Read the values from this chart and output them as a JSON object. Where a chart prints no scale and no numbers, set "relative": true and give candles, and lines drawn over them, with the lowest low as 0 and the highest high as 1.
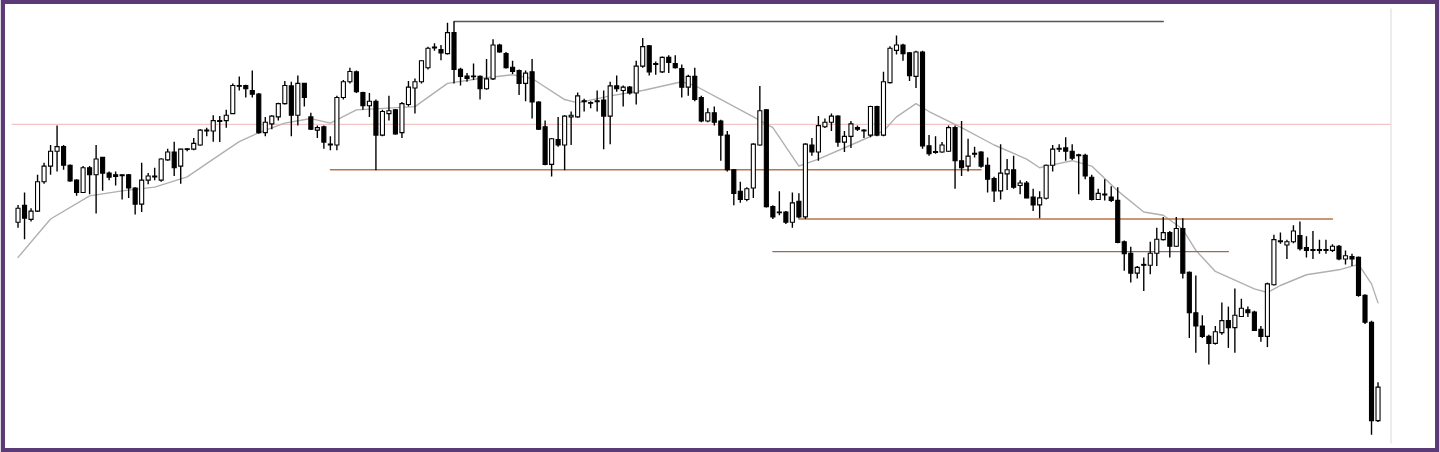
{
  "chart_data": {
    "type": "candlestick",
    "relative": true,
    "categories": [
      null,
      null,
      null,
      null,
      null,
      null,
      null,
      null,
      null,
      null,
      null,
      null,
      null,
      null,
      null,
      null,
      null,
      null,
      null,
      null,
      null,
      null,
      null,
      null,
      null,
      null,
      null,
      null,
      null,
      null,
      null,
      null,
      null,
      null,
      null,
      null,
      null,
      null,
      null,
      null,
      null,
      null,
      null,
      null,
      null,
      null,
      null,
      null,
      null,
      null,
      null,
      null,
      null,
      null,
      null,
      null,
      null,
      null,
      null,
      null,
      null,
      null,
      null,
      null,
      null,
      null,
      null,
      null,
      null,
      null,
      null,
      null,
      null,
      null,
      null,
      null,
      null,
      null,
      null,
      null,
      null,
      null,
      null,
      null,
      null,
      null,
      null,
      null,
      null,
      null,
      null,
      null,
      null,
      null,
      null,
      null,
      null,
      null,
      null,
      null,
      null,
      null,
      null,
      null,
      null,
      null,
      null,
      null,
      null,
      null,
      null,
      null,
      null,
      null,
      null,
      null,
      null,
      null,
      null,
      null,
      null,
      null,
      null,
      null,
      null,
      null,
      null,
      null,
      null,
      null,
      null,
      null,
      null,
      null,
      null,
      null,
      null,
      null,
      null,
      null,
      null,
      null,
      null,
      null,
      null,
      null,
      null,
      null,
      null,
      null,
      null,
      null,
      null,
      null,
      null,
      null,
      null,
      null,
      null,
      null,
      null,
      null,
      null,
      null,
      null,
      null,
      null,
      null,
      null,
      null,
      null,
      null,
      null,
      null,
      null,
      null,
      null,
      null,
      null,
      null,
      null,
      null,
      null,
      null,
      null,
      null,
      null,
      null,
      null,
      null,
      null,
      null,
      null,
      null,
      null,
      null,
      null,
      null,
      null,
      null,
      null,
      null,
      null,
      null,
      null,
      null,
      null,
      null,
      null,
      null
    ],
    "ohlc": [
      [
        0.514,
        0.556,
        0.501,
        0.548
      ],
      [
        0.555,
        0.586,
        0.473,
        0.524
      ],
      [
        0.521,
        0.548,
        0.516,
        0.541
      ],
      [
        0.541,
        0.629,
        0.539,
        0.612
      ],
      [
        0.612,
        0.658,
        0.607,
        0.65
      ],
      [
        0.65,
        0.701,
        0.629,
        0.686
      ],
      [
        0.686,
        0.748,
        0.637,
        0.697
      ],
      [
        0.697,
        0.701,
        0.641,
        0.652
      ],
      [
        0.652,
        0.654,
        0.612,
        0.614
      ],
      [
        0.616,
        0.618,
        0.578,
        0.586
      ],
      [
        0.586,
        0.65,
        0.586,
        0.646
      ],
      [
        0.646,
        0.65,
        0.582,
        0.629
      ],
      [
        0.629,
        0.701,
        0.535,
        0.667
      ],
      [
        0.671,
        0.671,
        0.59,
        0.633
      ],
      [
        0.633,
        0.637,
        0.616,
        0.623
      ],
      [
        0.629,
        0.637,
        0.603,
        0.625
      ],
      [
        0.629,
        0.629,
        0.569,
        0.627
      ],
      [
        0.629,
        0.631,
        0.573,
        0.597
      ],
      [
        0.597,
        0.599,
        0.533,
        0.558
      ],
      [
        0.558,
        0.658,
        0.539,
        0.616
      ],
      [
        0.616,
        0.633,
        0.606,
        0.626
      ],
      [
        0.624,
        0.646,
        0.616,
        0.625
      ],
      [
        0.616,
        0.669,
        0.612,
        0.667
      ],
      [
        0.665,
        0.692,
        0.663,
        0.684
      ],
      [
        0.684,
        0.709,
        0.626,
        0.646
      ],
      [
        0.65,
        0.692,
        0.607,
        0.691
      ],
      [
        0.69,
        0.694,
        0.686,
        0.691
      ],
      [
        0.691,
        0.718,
        0.688,
        0.705
      ],
      [
        0.701,
        0.739,
        0.699,
        0.737
      ],
      [
        0.735,
        0.743,
        0.722,
        0.737
      ],
      [
        0.735,
        0.773,
        0.709,
        0.76
      ],
      [
        0.76,
        0.771,
        0.708,
        0.758
      ],
      [
        0.76,
        0.786,
        0.743,
        0.773
      ],
      [
        0.777,
        0.85,
        0.776,
        0.845
      ],
      [
        0.845,
        0.867,
        0.833,
        0.843
      ],
      [
        0.845,
        0.847,
        0.816,
        0.837
      ],
      [
        0.833,
        0.881,
        0.816,
        0.824
      ],
      [
        0.824,
        0.827,
        0.728,
        0.731
      ],
      [
        0.731,
        0.769,
        0.722,
        0.756
      ],
      [
        0.752,
        0.773,
        0.739,
        0.771
      ],
      [
        0.769,
        0.803,
        0.76,
        0.801
      ],
      [
        0.801,
        0.856,
        0.799,
        0.845
      ],
      [
        0.844,
        0.854,
        0.722,
        0.773
      ],
      [
        0.773,
        0.869,
        0.748,
        0.85
      ],
      [
        0.85,
        0.851,
        0.794,
        0.816
      ],
      [
        0.769,
        0.779,
        0.737,
        0.739
      ],
      [
        0.737,
        0.748,
        0.718,
        0.743
      ],
      [
        0.745,
        0.748,
        0.692,
        0.708
      ],
      [
        0.703,
        0.722,
        0.688,
        0.701
      ],
      [
        0.701,
        0.82,
        0.688,
        0.816
      ],
      [
        0.816,
        0.858,
        0.811,
        0.854
      ],
      [
        0.854,
        0.888,
        0.85,
        0.879
      ],
      [
        0.878,
        0.881,
        0.827,
        0.83
      ],
      [
        0.828,
        0.83,
        0.786,
        0.796
      ],
      [
        0.796,
        0.827,
        0.769,
        0.807
      ],
      [
        0.807,
        0.811,
        0.64,
        0.725
      ],
      [
        0.725,
        0.786,
        0.722,
        0.782
      ],
      [
        0.777,
        0.82,
        0.76,
        0.784
      ],
      [
        0.786,
        0.788,
        0.726,
        0.728
      ],
      [
        0.731,
        0.805,
        0.718,
        0.801
      ],
      [
        0.799,
        0.856,
        0.794,
        0.841
      ],
      [
        0.839,
        0.862,
        0.777,
        0.854
      ],
      [
        0.854,
        0.906,
        0.85,
        0.905
      ],
      [
        0.888,
        0.939,
        0.884,
        0.935
      ],
      [
        0.937,
        0.947,
        0.929,
        0.936
      ],
      [
        0.932,
        0.943,
        0.906,
        0.924
      ],
      [
        0.922,
        0.997,
        0.92,
        0.973
      ],
      [
        0.973,
        1.0,
        0.85,
        0.884
      ],
      [
        0.884,
        0.888,
        0.845,
        0.867
      ],
      [
        0.868,
        0.875,
        0.854,
        0.862
      ],
      [
        0.867,
        0.898,
        0.858,
        0.866
      ],
      [
        0.867,
        0.869,
        0.811,
        0.837
      ],
      [
        0.837,
        0.909,
        0.835,
        0.861
      ],
      [
        0.861,
        0.957,
        0.858,
        0.943
      ],
      [
        0.943,
        0.946,
        0.924,
        0.926
      ],
      [
        0.922,
        0.926,
        0.886,
        0.888
      ],
      [
        0.889,
        0.905,
        0.873,
        0.879
      ],
      [
        0.881,
        0.884,
        0.822,
        0.85
      ],
      [
        0.85,
        0.881,
        0.807,
        0.875
      ],
      [
        0.878,
        0.909,
        0.765,
        0.805
      ],
      [
        0.805,
        0.807,
        0.737,
        0.739
      ],
      [
        0.745,
        0.76,
        0.652,
        0.654
      ],
      [
        0.654,
        0.718,
        0.625,
        0.716
      ],
      [
        0.714,
        0.769,
        0.697,
        0.701
      ],
      [
        0.701,
        0.773,
        0.64,
        0.771
      ],
      [
        0.769,
        0.782,
        0.701,
        0.773
      ],
      [
        0.769,
        0.828,
        0.767,
        0.82
      ],
      [
        0.807,
        0.813,
        0.782,
        0.806
      ],
      [
        0.803,
        0.807,
        0.79,
        0.802
      ],
      [
        0.807,
        0.833,
        0.782,
        0.806
      ],
      [
        0.81,
        0.833,
        0.691,
        0.771
      ],
      [
        0.771,
        0.854,
        0.703,
        0.844
      ],
      [
        0.844,
        0.869,
        0.83,
        0.837
      ],
      [
        0.833,
        0.845,
        0.794,
        0.841
      ],
      [
        0.841,
        0.844,
        0.823,
        0.827
      ],
      [
        0.827,
        0.905,
        0.799,
        0.892
      ],
      [
        0.892,
        0.96,
        0.888,
        0.939
      ],
      [
        0.941,
        0.943,
        0.869,
        0.878
      ],
      [
        0.897,
        0.903,
        0.871,
        0.896
      ],
      [
        0.878,
        0.915,
        0.875,
        0.913
      ],
      [
        0.913,
        0.918,
        0.875,
        0.901
      ],
      [
        0.898,
        0.918,
        0.886,
        0.888
      ],
      [
        0.886,
        0.896,
        0.816,
        0.841
      ],
      [
        0.841,
        0.871,
        0.82,
        0.867
      ],
      [
        0.867,
        0.888,
        0.807,
        0.811
      ],
      [
        0.816,
        0.82,
        0.756,
        0.759
      ],
      [
        0.759,
        0.79,
        0.756,
        0.779
      ],
      [
        0.779,
        0.794,
        0.748,
        0.756
      ],
      [
        0.759,
        0.762,
        0.663,
        0.725
      ],
      [
        0.725,
        0.735,
        0.637,
        0.641
      ],
      [
        0.641,
        0.643,
        0.555,
        0.584
      ],
      [
        0.589,
        0.612,
        0.561,
        0.569
      ],
      [
        0.569,
        0.599,
        0.565,
        0.595
      ],
      [
        0.597,
        0.705,
        0.573,
        0.703
      ],
      [
        0.701,
        0.844,
        0.699,
        0.784
      ],
      [
        0.786,
        0.788,
        0.55,
        0.552
      ],
      [
        0.552,
        0.555,
        0.522,
        0.527
      ],
      [
        0.538,
        0.589,
        0.531,
        0.537
      ],
      [
        0.539,
        0.541,
        0.51,
        0.514
      ],
      [
        0.514,
        0.586,
        0.501,
        0.561
      ],
      [
        0.565,
        0.584,
        0.524,
        0.527
      ],
      [
        0.527,
        0.705,
        0.522,
        0.703
      ],
      [
        0.701,
        0.718,
        0.675,
        0.684
      ],
      [
        0.684,
        0.771,
        0.663,
        0.748
      ],
      [
        0.745,
        0.765,
        0.742,
        0.756
      ],
      [
        0.756,
        0.777,
        0.735,
        0.771
      ],
      [
        0.771,
        0.773,
        0.697,
        0.708
      ],
      [
        0.708,
        0.735,
        0.684,
        0.722
      ],
      [
        0.722,
        0.759,
        0.694,
        0.752
      ],
      [
        0.743,
        0.748,
        0.735,
        0.739
      ],
      [
        0.736,
        0.739,
        0.718,
        0.735
      ],
      [
        0.725,
        0.796,
        0.72,
        0.794
      ],
      [
        0.794,
        0.796,
        0.722,
        0.725
      ],
      [
        0.725,
        0.878,
        0.722,
        0.854
      ],
      [
        0.852,
        0.94,
        0.85,
        0.935
      ],
      [
        0.93,
        0.966,
        0.92,
        0.943
      ],
      [
        0.943,
        0.946,
        0.905,
        0.922
      ],
      [
        0.924,
        0.926,
        0.856,
        0.869
      ],
      [
        0.867,
        0.929,
        0.839,
        0.926
      ],
      [
        0.926,
        0.929,
        0.692,
        0.699
      ],
      [
        0.699,
        0.725,
        0.675,
        0.68
      ],
      [
        0.684,
        0.722,
        0.68,
        0.683
      ],
      [
        0.684,
        0.708,
        0.682,
        0.701
      ],
      [
        0.686,
        0.748,
        0.684,
        0.743
      ],
      [
        0.743,
        0.748,
        0.595,
        0.663
      ],
      [
        0.663,
        0.759,
        0.626,
        0.646
      ],
      [
        0.65,
        0.716,
        0.637,
        0.674
      ],
      [
        0.68,
        0.697,
        0.671,
        0.679
      ],
      [
        0.684,
        0.686,
        0.646,
        0.65
      ],
      [
        0.652,
        0.671,
        0.586,
        0.618
      ],
      [
        0.62,
        0.624,
        0.563,
        0.59
      ],
      [
        0.59,
        0.703,
        0.569,
        0.633
      ],
      [
        0.631,
        0.667,
        0.592,
        0.641
      ],
      [
        0.641,
        0.675,
        0.595,
        0.599
      ],
      [
        0.603,
        0.616,
        0.582,
        0.609
      ],
      [
        0.609,
        0.614,
        0.572,
        0.573
      ],
      [
        0.575,
        0.595,
        0.541,
        0.556
      ],
      [
        0.556,
        0.589,
        0.524,
        0.573
      ],
      [
        0.572,
        0.654,
        0.569,
        0.652
      ],
      [
        0.652,
        0.701,
        0.637,
        0.691
      ],
      [
        0.691,
        0.703,
        0.684,
        0.692
      ],
      [
        0.694,
        0.72,
        0.663,
        0.686
      ],
      [
        0.686,
        0.703,
        0.665,
        0.669
      ],
      [
        0.676,
        0.68,
        0.582,
        0.675
      ],
      [
        0.676,
        0.68,
        0.618,
        0.626
      ],
      [
        0.623,
        0.629,
        0.567,
        0.569
      ],
      [
        0.569,
        0.595,
        0.569,
        0.584
      ],
      [
        0.581,
        0.618,
        0.567,
        0.58
      ],
      [
        0.575,
        0.601,
        0.563,
        0.567
      ],
      [
        0.567,
        0.599,
        0.463,
        0.465
      ],
      [
        0.467,
        0.47,
        0.397,
        0.438
      ],
      [
        0.439,
        0.455,
        0.368,
        0.391
      ],
      [
        0.391,
        0.408,
        0.378,
        0.405
      ],
      [
        0.411,
        0.429,
        0.348,
        0.41
      ],
      [
        0.41,
        0.467,
        0.388,
        0.439
      ],
      [
        0.439,
        0.501,
        0.408,
        0.473
      ],
      [
        0.472,
        0.527,
        0.47,
        0.489
      ],
      [
        0.489,
        0.493,
        0.429,
        0.456
      ],
      [
        0.456,
        0.527,
        0.455,
        0.499
      ],
      [
        0.499,
        0.524,
        0.378,
        0.391
      ],
      [
        0.393,
        0.395,
        0.234,
        0.295
      ],
      [
        0.295,
        0.385,
        0.198,
        0.263
      ],
      [
        0.263,
        0.289,
        0.234,
        0.238
      ],
      [
        0.238,
        0.242,
        0.17,
        0.221
      ],
      [
        0.221,
        0.263,
        0.218,
        0.249
      ],
      [
        0.247,
        0.32,
        0.242,
        0.276
      ],
      [
        0.276,
        0.31,
        0.21,
        0.259
      ],
      [
        0.259,
        0.354,
        0.198,
        0.289
      ],
      [
        0.286,
        0.329,
        0.285,
        0.306
      ],
      [
        0.302,
        0.31,
        0.285,
        0.295
      ],
      [
        0.297,
        0.3,
        0.251,
        0.252
      ],
      [
        0.255,
        0.263,
        0.225,
        0.238
      ],
      [
        0.238,
        0.368,
        0.212,
        0.365
      ],
      [
        0.363,
        0.484,
        0.361,
        0.472
      ],
      [
        0.468,
        0.489,
        0.462,
        0.467
      ],
      [
        0.459,
        0.472,
        0.425,
        0.467
      ],
      [
        0.467,
        0.507,
        0.463,
        0.493
      ],
      [
        0.482,
        0.516,
        0.446,
        0.45
      ],
      [
        0.453,
        0.48,
        0.429,
        0.446
      ],
      [
        0.447,
        0.493,
        0.425,
        0.446
      ],
      [
        0.447,
        0.472,
        0.438,
        0.446
      ],
      [
        0.447,
        0.472,
        0.438,
        0.446
      ],
      [
        0.446,
        0.461,
        0.442,
        0.456
      ],
      [
        0.456,
        0.459,
        0.422,
        0.425
      ],
      [
        0.425,
        0.446,
        0.412,
        0.433
      ],
      [
        0.431,
        0.438,
        0.408,
        0.425
      ],
      [
        0.429,
        0.431,
        0.334,
        0.337
      ],
      [
        0.337,
        0.34,
        0.268,
        0.272
      ],
      [
        0.272,
        0.276,
        0.0,
        0.034
      ],
      [
        0.034,
        0.127,
        0.031,
        0.115
      ]
    ],
    "series": [
      {
        "type": "line",
        "color": "#b0b0b0",
        "values": [
          0.429,
          null,
          null,
          null,
          null,
          0.522,
          null,
          null,
          null,
          null,
          null,
          0.578,
          null,
          null,
          null,
          null,
          0.59,
          null,
          null,
          null,
          null,
          0.599,
          null,
          null,
          null,
          null,
          0.624,
          null,
          null,
          null,
          0.667,
          null,
          null,
          null,
          0.709,
          null,
          null,
          0.731,
          null,
          null,
          null,
          0.754,
          null,
          null,
          null,
          0.765,
          null,
          null,
          0.754,
          null,
          null,
          null,
          0.786,
          null,
          null,
          null,
          null,
          null,
          null,
          null,
          null,
          0.794,
          null,
          null,
          null,
          null,
          0.85,
          null,
          null,
          null,
          null,
          0.862,
          null,
          null,
          null,
          null,
          0.871,
          null,
          null,
          0.862,
          null,
          null,
          null,
          null,
          0.811,
          null,
          0.803,
          null,
          null,
          null,
          null,
          0.82,
          null,
          null,
          null,
          null,
          0.833,
          null,
          null,
          null,
          null,
          null,
          0.854,
          null,
          0.845,
          null,
          null,
          null,
          null,
          0.803,
          null,
          null,
          null,
          0.769,
          null,
          null,
          0.743,
          null,
          null,
          null,
          0.65,
          null,
          null,
          0.667,
          null,
          null,
          null,
          null,
          0.701,
          null,
          null,
          null,
          null,
          0.735,
          null,
          0.769,
          null,
          null,
          0.801,
          null,
          0.782,
          null,
          null,
          null,
          null,
          0.743,
          null,
          null,
          null,
          null,
          0.701,
          null,
          null,
          null,
          null,
          0.667,
          null,
          0.646,
          0.65,
          null,
          null,
          null,
          0.663,
          null,
          null,
          0.65,
          null,
          null,
          null,
          0.59,
          null,
          null,
          null,
          0.539,
          null,
          null,
          0.531,
          null,
          null,
          0.497,
          null,
          0.446,
          null,
          null,
          0.395,
          null,
          null,
          0.374,
          null,
          null,
          0.353,
          null,
          0.344,
          null,
          0.361,
          null,
          null,
          null,
          0.387,
          null,
          null,
          null,
          null,
          0.399,
          null,
          null,
          0.412,
          null,
          0.365,
          0.319
        ]
      },
      {
        "type": "line",
        "color": "#555555",
        "values": [
          null,
          null,
          null,
          null,
          null,
          null,
          null,
          null,
          null,
          null,
          null,
          null,
          null,
          null,
          null,
          null,
          null,
          null,
          null,
          null,
          null,
          null,
          null,
          null,
          null,
          null,
          null,
          null,
          null,
          null,
          null,
          null,
          null,
          null,
          null,
          null,
          null,
          null,
          null,
          null,
          null,
          null,
          null,
          null,
          null,
          null,
          null,
          null,
          null,
          null,
          null,
          null,
          null,
          null,
          null,
          null,
          null,
          null,
          null,
          null,
          null,
          null,
          null,
          null,
          null,
          null,
          null,
          1.0,
          1.0,
          1.0,
          1.0,
          1.0,
          1.0,
          1.0,
          1.0,
          1.0,
          1.0,
          1.0,
          1.0,
          1.0,
          1.0,
          1.0,
          1.0,
          1.0,
          1.0,
          1.0,
          1.0,
          1.0,
          1.0,
          1.0,
          1.0,
          1.0,
          1.0,
          1.0,
          1.0,
          1.0,
          1.0,
          1.0,
          1.0,
          1.0,
          1.0,
          1.0,
          1.0,
          1.0,
          1.0,
          1.0,
          1.0,
          1.0,
          1.0,
          1.0,
          1.0,
          1.0,
          1.0,
          1.0,
          1.0,
          1.0,
          1.0,
          1.0,
          1.0,
          1.0,
          1.0,
          1.0,
          1.0,
          1.0,
          1.0,
          1.0,
          1.0,
          1.0,
          1.0,
          1.0,
          1.0,
          1.0,
          1.0,
          1.0,
          1.0,
          1.0,
          1.0,
          1.0,
          1.0,
          1.0,
          1.0,
          1.0,
          1.0,
          1.0,
          1.0,
          1.0,
          1.0,
          1.0,
          1.0,
          1.0,
          1.0,
          1.0,
          1.0,
          1.0,
          1.0,
          1.0,
          1.0,
          1.0,
          1.0,
          1.0,
          1.0,
          1.0,
          1.0,
          1.0,
          1.0,
          1.0,
          1.0,
          1.0,
          1.0,
          1.0,
          1.0,
          1.0,
          1.0,
          1.0,
          1.0,
          1.0,
          1.0,
          null,
          null,
          null,
          null,
          null,
          null,
          null,
          null,
          null,
          null,
          null,
          null,
          null,
          null,
          null,
          null,
          null,
          null,
          null,
          null,
          null,
          null,
          null,
          null,
          null,
          null,
          null,
          null,
          null,
          null,
          null,
          null,
          null
        ]
      },
      {
        "type": "line",
        "color": "#b8754a",
        "values": [
          null,
          null,
          null,
          null,
          null,
          null,
          null,
          null,
          null,
          null,
          null,
          null,
          null,
          null,
          null,
          null,
          null,
          null,
          null,
          null,
          null,
          null,
          null,
          null,
          null,
          null,
          null,
          null,
          null,
          null,
          null,
          null,
          null,
          null,
          null,
          null,
          null,
          null,
          null,
          null,
          null,
          null,
          null,
          null,
          null,
          null,
          null,
          null,
          0.641,
          0.641,
          0.641,
          0.641,
          0.641,
          0.641,
          0.641,
          0.641,
          0.641,
          0.641,
          0.641,
          0.641,
          0.641,
          0.641,
          0.641,
          0.641,
          0.641,
          0.641,
          0.641,
          0.641,
          0.641,
          0.641,
          0.641,
          0.641,
          0.641,
          0.641,
          0.641,
          0.641,
          0.641,
          0.641,
          0.641,
          0.641,
          0.641,
          0.641,
          0.641,
          0.641,
          0.641,
          0.641,
          0.641,
          0.641,
          0.641,
          0.641,
          0.641,
          0.641,
          0.641,
          0.641,
          0.641,
          0.641,
          0.641,
          0.641,
          0.641,
          0.641,
          0.641,
          0.641,
          0.641,
          0.641,
          0.641,
          0.641,
          0.641,
          0.641,
          0.641,
          0.641,
          0.641,
          0.641,
          0.641,
          0.641,
          0.641,
          0.641,
          0.641,
          0.641,
          0.641,
          0.641,
          0.641,
          0.641,
          0.641,
          0.641,
          0.641,
          0.641,
          0.641,
          0.641,
          0.641,
          0.641,
          0.641,
          0.641,
          0.641,
          0.641,
          0.641,
          0.641,
          0.641,
          0.641,
          0.641,
          0.641,
          0.641,
          0.641,
          0.641,
          0.641,
          0.641,
          0.641,
          0.641,
          0.641,
          0.641,
          null,
          null,
          null,
          null,
          null,
          null,
          null,
          null,
          null,
          null,
          null,
          null,
          null,
          null,
          null,
          null,
          null,
          null,
          null,
          null,
          null,
          null,
          null,
          null,
          null,
          null,
          null,
          null,
          null,
          null,
          null,
          null,
          null,
          null,
          null,
          null,
          null,
          null,
          null,
          null,
          null,
          null,
          null,
          null,
          null,
          null,
          null,
          null,
          null,
          null,
          null,
          null,
          null,
          null,
          null,
          null,
          null,
          null,
          null,
          null,
          null
        ]
      },
      {
        "type": "line",
        "color": "#b8754a",
        "values": [
          null,
          null,
          null,
          null,
          null,
          null,
          null,
          null,
          null,
          null,
          null,
          null,
          null,
          null,
          null,
          null,
          null,
          null,
          null,
          null,
          null,
          null,
          null,
          null,
          null,
          null,
          null,
          null,
          null,
          null,
          null,
          null,
          null,
          null,
          null,
          null,
          null,
          null,
          null,
          null,
          null,
          null,
          null,
          null,
          null,
          null,
          null,
          null,
          null,
          null,
          null,
          null,
          null,
          null,
          null,
          null,
          null,
          null,
          null,
          null,
          null,
          null,
          null,
          null,
          null,
          null,
          null,
          null,
          null,
          null,
          null,
          null,
          null,
          null,
          null,
          null,
          null,
          null,
          null,
          null,
          null,
          null,
          null,
          null,
          null,
          null,
          null,
          null,
          null,
          null,
          null,
          null,
          null,
          null,
          null,
          null,
          null,
          null,
          null,
          null,
          null,
          null,
          null,
          null,
          null,
          null,
          null,
          null,
          null,
          null,
          null,
          null,
          null,
          null,
          null,
          null,
          null,
          null,
          null,
          null,
          0.522,
          0.522,
          0.522,
          0.522,
          0.522,
          0.522,
          0.522,
          0.522,
          0.522,
          0.522,
          0.522,
          0.522,
          0.522,
          0.522,
          0.522,
          0.522,
          0.522,
          0.522,
          0.522,
          0.522,
          0.522,
          0.522,
          0.522,
          0.522,
          0.522,
          0.522,
          0.522,
          0.522,
          0.522,
          0.522,
          0.522,
          0.522,
          0.522,
          0.522,
          0.522,
          0.522,
          0.522,
          0.522,
          0.522,
          0.522,
          0.522,
          0.522,
          0.522,
          0.522,
          0.522,
          0.522,
          0.522,
          0.522,
          0.522,
          0.522,
          0.522,
          0.522,
          0.522,
          0.522,
          0.522,
          0.522,
          0.522,
          0.522,
          0.522,
          0.522,
          0.522,
          0.522,
          0.522,
          0.522,
          0.522,
          0.522,
          0.522,
          0.522,
          0.522,
          0.522,
          0.522,
          0.522,
          0.522,
          0.522,
          0.522,
          0.522,
          0.522,
          0.522,
          0.522,
          0.522,
          0.522,
          0.522,
          0.522,
          null,
          null,
          null,
          null,
          null,
          null,
          null
        ]
      },
      {
        "type": "line",
        "color": "#8a7060",
        "values": [
          null,
          null,
          null,
          null,
          null,
          null,
          null,
          null,
          null,
          null,
          null,
          null,
          null,
          null,
          null,
          null,
          null,
          null,
          null,
          null,
          null,
          null,
          null,
          null,
          null,
          null,
          null,
          null,
          null,
          null,
          null,
          null,
          null,
          null,
          null,
          null,
          null,
          null,
          null,
          null,
          null,
          null,
          null,
          null,
          null,
          null,
          null,
          null,
          null,
          null,
          null,
          null,
          null,
          null,
          null,
          null,
          null,
          null,
          null,
          null,
          null,
          null,
          null,
          null,
          null,
          null,
          null,
          null,
          null,
          null,
          null,
          null,
          null,
          null,
          null,
          null,
          null,
          null,
          null,
          null,
          null,
          null,
          null,
          null,
          null,
          null,
          null,
          null,
          null,
          null,
          null,
          null,
          null,
          null,
          null,
          null,
          null,
          null,
          null,
          null,
          null,
          null,
          null,
          null,
          null,
          null,
          null,
          null,
          null,
          null,
          null,
          null,
          null,
          null,
          null,
          null,
          0.443,
          0.443,
          0.443,
          0.443,
          0.443,
          0.443,
          0.443,
          0.443,
          0.443,
          0.443,
          0.443,
          0.443,
          0.443,
          0.443,
          0.443,
          0.443,
          0.443,
          0.443,
          0.443,
          0.443,
          0.443,
          0.443,
          0.443,
          0.443,
          0.443,
          0.443,
          0.443,
          0.443,
          0.443,
          0.443,
          0.443,
          0.443,
          0.443,
          0.443,
          0.443,
          0.443,
          0.443,
          0.443,
          0.443,
          0.443,
          0.443,
          0.443,
          0.443,
          0.443,
          0.443,
          0.443,
          0.443,
          0.443,
          0.443,
          0.443,
          0.443,
          0.443,
          0.443,
          0.443,
          0.443,
          0.443,
          0.443,
          0.443,
          0.443,
          0.443,
          0.443,
          0.443,
          0.443,
          0.443,
          0.443,
          0.443,
          0.443,
          0.443,
          0.443,
          0.443,
          0.443,
          null,
          null,
          null,
          null,
          null,
          null,
          null,
          null,
          null,
          null,
          null,
          null,
          null,
          null,
          null,
          null,
          null,
          null,
          null,
          null,
          null,
          null,
          null
        ]
      }
    ],
    "ref_lines": [
      {
        "axis": "y",
        "value": 0.751,
        "color": "#f2c4c4"
      }
    ]
  }
}
